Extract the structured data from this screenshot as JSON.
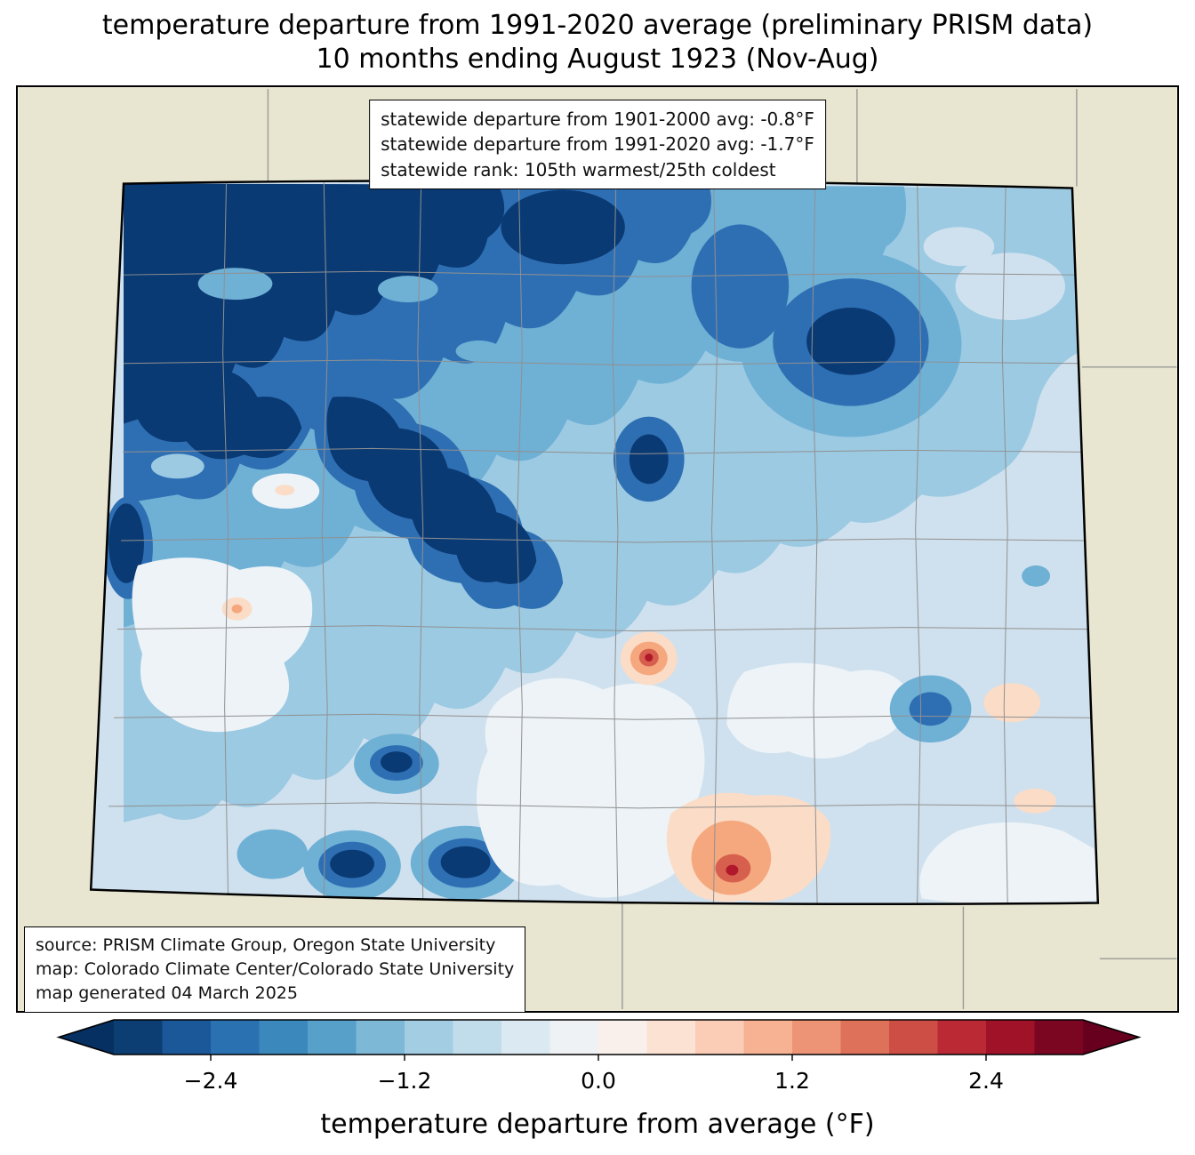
{
  "title": {
    "line1": "temperature departure from 1991-2020 average (preliminary PRISM data)",
    "line2": "10 months ending August 1923 (Nov-Aug)"
  },
  "stats_box": {
    "lines": [
      "statewide departure from 1901-2000 avg: -0.8°F",
      "statewide departure from 1991-2020 avg: -1.7°F",
      "statewide rank: 105th warmest/25th coldest"
    ]
  },
  "source_box": {
    "lines": [
      "source: PRISM Climate Group, Oregon State University",
      "map: Colorado Climate Center/Colorado State University",
      "map generated 04 March 2025"
    ]
  },
  "colorbar": {
    "label": "temperature departure from average (°F)",
    "ticks": [
      "−2.4",
      "−1.2",
      "0.0",
      "1.2",
      "2.4"
    ],
    "tick_values": [
      -2.4,
      -1.2,
      0.0,
      1.2,
      2.4
    ],
    "range": [
      -3.0,
      3.0
    ],
    "left_arrow_color": "#053061",
    "right_arrow_color": "#67001f",
    "segment_colors": [
      "#0c3e74",
      "#1a5899",
      "#2a71b2",
      "#3b88bd",
      "#57a0ca",
      "#7eb8d7",
      "#a2cde3",
      "#c1ddec",
      "#dbe9f2",
      "#eef2f5",
      "#f9f0eb",
      "#fce2d3",
      "#fbcdb6",
      "#f6b293",
      "#ec9475",
      "#de715a",
      "#cd4e45",
      "#bb2a34",
      "#9f1228",
      "#7a0622"
    ]
  },
  "map": {
    "palette": {
      "background_land": "#e8e6d0",
      "neighbor_line": "#9a9a98",
      "state_base": "#cfe1ee",
      "navy": "#0a3a74",
      "dark_blue": "#2e6fb3",
      "mid_blue": "#6fb0d5",
      "light_blue": "#9ccae2",
      "near_white": "#edf3f7",
      "pale_orange": "#fbdcc7",
      "orange": "#f5a87e",
      "red": "#d6604d",
      "dark_red": "#b2182b",
      "county_line": "#909090",
      "state_border": "#000000"
    }
  }
}
